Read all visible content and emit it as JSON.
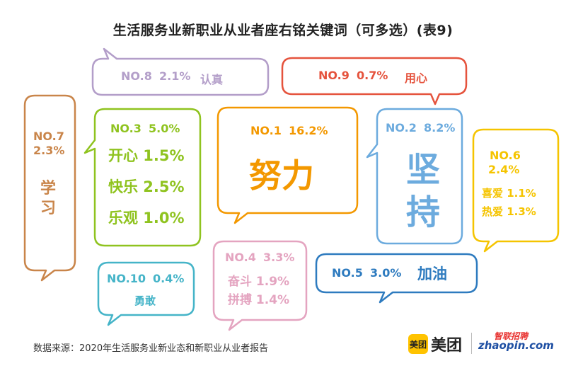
{
  "title": "生活服务业新职业从业者座右铭关键词（可多选）(表9)",
  "source": "数据来源：2020年生活服务业新业态和新职业从业者报告",
  "logos": {
    "meituan_badge": "美团",
    "meituan_text": "美团",
    "zhaopin_cn": "智联招聘",
    "zhaopin_en": "zhaopin.com"
  },
  "chart_data": {
    "type": "table",
    "bubbles": [
      {
        "rank": "NO.1",
        "percent": "16.2%",
        "value": 16.2,
        "keyword": "努力",
        "color": "#f39800"
      },
      {
        "rank": "NO.2",
        "percent": "8.2%",
        "value": 8.2,
        "keyword": "坚持",
        "color": "#6cabde"
      },
      {
        "rank": "NO.3",
        "percent": "5.0%",
        "value": 5.0,
        "color": "#8fc31f",
        "items": [
          {
            "keyword": "开心",
            "percent": "1.5%",
            "value": 1.5
          },
          {
            "keyword": "快乐",
            "percent": "2.5%",
            "value": 2.5
          },
          {
            "keyword": "乐观",
            "percent": "1.0%",
            "value": 1.0
          }
        ]
      },
      {
        "rank": "NO.4",
        "percent": "3.3%",
        "value": 3.3,
        "color": "#e4a4c0",
        "items": [
          {
            "keyword": "奋斗",
            "percent": "1.9%",
            "value": 1.9
          },
          {
            "keyword": "拼搏",
            "percent": "1.4%",
            "value": 1.4
          }
        ]
      },
      {
        "rank": "NO.5",
        "percent": "3.0%",
        "value": 3.0,
        "keyword": "加油",
        "color": "#2e7bbf"
      },
      {
        "rank": "NO.6",
        "percent": "2.4%",
        "value": 2.4,
        "color": "#f5c400",
        "items": [
          {
            "keyword": "喜爱",
            "percent": "1.1%",
            "value": 1.1
          },
          {
            "keyword": "热爱",
            "percent": "1.3%",
            "value": 1.3
          }
        ]
      },
      {
        "rank": "NO.7",
        "percent": "2.3%",
        "value": 2.3,
        "keyword": "学习",
        "color": "#c9854a"
      },
      {
        "rank": "NO.8",
        "percent": "2.1%",
        "value": 2.1,
        "keyword": "认真",
        "color": "#b39ec9"
      },
      {
        "rank": "NO.9",
        "percent": "0.7%",
        "value": 0.7,
        "keyword": "用心",
        "color": "#e5533d"
      },
      {
        "rank": "NO.10",
        "percent": "0.4%",
        "value": 0.4,
        "keyword": "勇敢",
        "color": "#45b4c8"
      }
    ]
  }
}
